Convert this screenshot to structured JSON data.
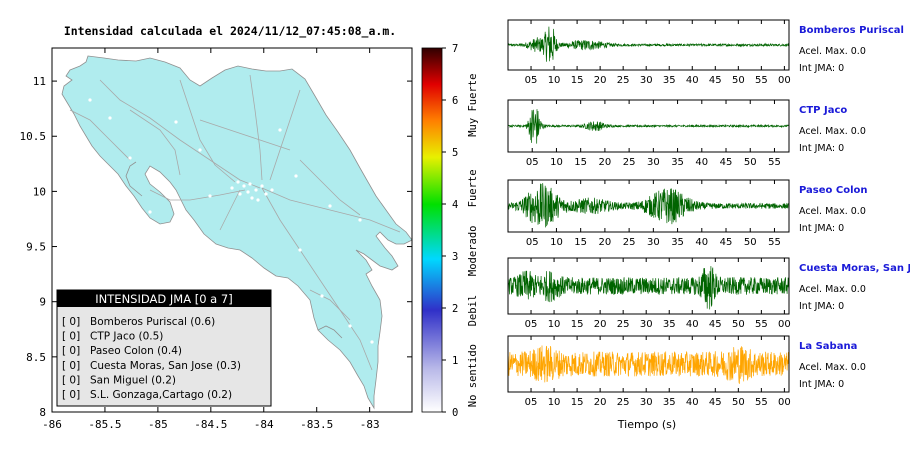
{
  "map": {
    "title": "Intensidad calculada el 2024/11/12_07:45:08_a.m.",
    "x_ticks": [
      "-86",
      "-85.5",
      "-85",
      "-84.5",
      "-84",
      "-83.5",
      "-83"
    ],
    "y_ticks": [
      "11",
      "10.5",
      "10",
      "9.5",
      "9",
      "8.5",
      "8"
    ],
    "fill_color": "#b0ecee",
    "legend": {
      "title": "INTENSIDAD JMA [0 a 7]",
      "items": [
        {
          "value": "[ 0]",
          "label": "Bomberos Puriscal (0.6)"
        },
        {
          "value": "[ 0]",
          "label": "CTP Jaco (0.5)"
        },
        {
          "value": "[ 0]",
          "label": "Paseo Colon (0.4)"
        },
        {
          "value": "[ 0]",
          "label": "Cuesta Moras, San Jose (0.3)"
        },
        {
          "value": "[ 0]",
          "label": "San Miguel (0.2)"
        },
        {
          "value": "[ 0]",
          "label": "S.L. Gonzaga,Cartago (0.2)"
        }
      ]
    }
  },
  "colorbar": {
    "ticks": [
      "0",
      "1",
      "2",
      "3",
      "4",
      "5",
      "6",
      "7"
    ],
    "categories": [
      "No sentido",
      "Debil",
      "Moderado",
      "Fuerte",
      "Muy Fuerte"
    ],
    "colors": [
      "#ffffff",
      "#b0b0e6",
      "#3030c8",
      "#00d8ff",
      "#00e000",
      "#e8f000",
      "#ff8000",
      "#e00000",
      "#300000"
    ]
  },
  "chart_data": [
    {
      "type": "line",
      "name": "Bomberos Puriscal",
      "title": "Bomberos Puriscal",
      "accel_label": "Acel. Max. 0.0",
      "jma_label": "Int JMA: 0",
      "color": "#006400",
      "x_ticks": [
        "05",
        "10",
        "15",
        "20",
        "25",
        "30",
        "35",
        "40",
        "45",
        "50",
        "55",
        "00"
      ],
      "xlim": [
        0,
        61
      ],
      "noise": 0.05,
      "bursts": [
        {
          "t": 9.2,
          "amp": 1.0,
          "width": 0.8
        },
        {
          "t": 6.5,
          "amp": 0.3,
          "width": 1.6
        },
        {
          "t": 17,
          "amp": 0.2,
          "width": 3
        }
      ]
    },
    {
      "type": "line",
      "name": "CTP Jaco",
      "title": "CTP Jaco",
      "accel_label": "Acel. Max. 0.0",
      "jma_label": "Int JMA: 0",
      "color": "#006400",
      "x_ticks": [
        "05",
        "10",
        "15",
        "20",
        "25",
        "30",
        "35",
        "40",
        "45",
        "50",
        "55"
      ],
      "xlim": [
        0,
        58
      ],
      "noise": 0.04,
      "bursts": [
        {
          "t": 5.5,
          "amp": 1.0,
          "width": 0.8
        },
        {
          "t": 18,
          "amp": 0.2,
          "width": 1.5
        }
      ]
    },
    {
      "type": "line",
      "name": "Paseo Colon",
      "title": "Paseo Colon",
      "accel_label": "Acel. Max. 0.0",
      "jma_label": "Int JMA: 0",
      "color": "#006400",
      "x_ticks": [
        "05",
        "10",
        "15",
        "20",
        "25",
        "30",
        "35",
        "40",
        "45",
        "50",
        "55"
      ],
      "xlim": [
        0,
        58
      ],
      "noise": 0.12,
      "bursts": [
        {
          "t": 7,
          "amp": 0.9,
          "width": 2.5
        },
        {
          "t": 33,
          "amp": 0.7,
          "width": 3
        },
        {
          "t": 17,
          "amp": 0.25,
          "width": 3
        }
      ]
    },
    {
      "type": "line",
      "name": "Cuesta Moras, San Jose",
      "title": "Cuesta Moras, San Jose",
      "accel_label": "Acel. Max. 0.0",
      "jma_label": "Int JMA: 0",
      "color": "#006400",
      "x_ticks": [
        "05",
        "10",
        "15",
        "20",
        "25",
        "30",
        "35",
        "40",
        "45",
        "50",
        "55",
        "00"
      ],
      "xlim": [
        0,
        61
      ],
      "noise": 0.35,
      "bursts": [
        {
          "t": 43.5,
          "amp": 0.7,
          "width": 1.0
        },
        {
          "t": 4,
          "amp": 0.3,
          "width": 1.2
        },
        {
          "t": 9,
          "amp": 0.3,
          "width": 1.5
        }
      ]
    },
    {
      "type": "line",
      "name": "La Sabana",
      "title": "La Sabana",
      "accel_label": "Acel. Max. 0.0",
      "jma_label": "Int JMA: 0",
      "color": "#ffa500",
      "x_ticks": [
        "05",
        "10",
        "15",
        "20",
        "25",
        "30",
        "35",
        "40",
        "45",
        "50",
        "55",
        "00"
      ],
      "xlim": [
        0,
        61
      ],
      "noise": 0.5,
      "bursts": [
        {
          "t": 8,
          "amp": 0.3,
          "width": 2
        },
        {
          "t": 50,
          "amp": 0.3,
          "width": 2
        }
      ],
      "xlabel": "Tiempo (s)"
    }
  ]
}
